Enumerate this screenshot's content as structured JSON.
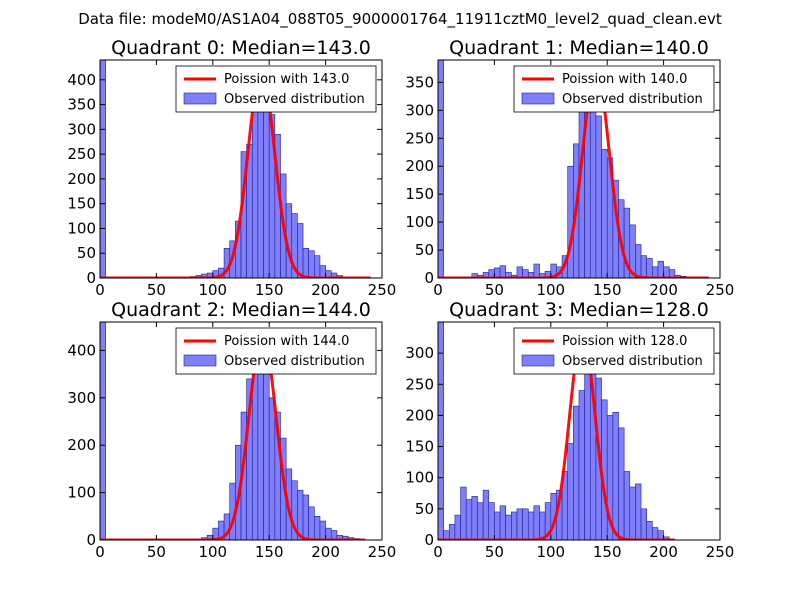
{
  "figure": {
    "title": "Data file: modeM0/AS1A04_088T05_9000001764_11911cztM0_level2_quad_clean.evt"
  },
  "colors": {
    "bar_fill": "#7f7ffb",
    "bar_edge": "#1f1f8f",
    "poisson_line": "#ff0000",
    "legend_edge": "#000000"
  },
  "chart_data": [
    {
      "type": "bar",
      "title": "Quadrant 0: Median=143.0",
      "xlim": [
        0,
        250
      ],
      "ylim": [
        0,
        440
      ],
      "xticks": [
        0,
        50,
        100,
        150,
        200,
        250
      ],
      "yticks": [
        0,
        50,
        100,
        150,
        200,
        250,
        300,
        350,
        400
      ],
      "legend_position": "top-right",
      "legend": [
        {
          "label": "Poission with 143.0",
          "kind": "line"
        },
        {
          "label": "Observed distribution",
          "kind": "bar"
        }
      ],
      "bin_width": 5,
      "histogram": {
        "bin_start": [
          0,
          80,
          85,
          90,
          95,
          100,
          105,
          110,
          115,
          120,
          125,
          130,
          135,
          140,
          145,
          150,
          155,
          160,
          165,
          170,
          175,
          180,
          185,
          190,
          195,
          200,
          205,
          210
        ],
        "counts": [
          440,
          3,
          5,
          8,
          10,
          15,
          20,
          60,
          75,
          115,
          255,
          270,
          370,
          405,
          385,
          330,
          290,
          210,
          150,
          130,
          110,
          60,
          55,
          45,
          25,
          15,
          10,
          5
        ]
      },
      "poisson": {
        "mean": 143.0,
        "peak": 415,
        "x_range": [
          0,
          240
        ]
      }
    },
    {
      "type": "bar",
      "title": "Quadrant 1: Median=140.0",
      "xlim": [
        0,
        250
      ],
      "ylim": [
        0,
        390
      ],
      "xticks": [
        0,
        50,
        100,
        150,
        200,
        250
      ],
      "yticks": [
        0,
        50,
        100,
        150,
        200,
        250,
        300,
        350
      ],
      "legend_position": "top-right",
      "legend": [
        {
          "label": "Poission with 140.0",
          "kind": "line"
        },
        {
          "label": "Observed distribution",
          "kind": "bar"
        }
      ],
      "bin_width": 5,
      "histogram": {
        "bin_start": [
          0,
          30,
          35,
          40,
          45,
          50,
          55,
          60,
          65,
          70,
          75,
          80,
          85,
          90,
          95,
          100,
          105,
          110,
          115,
          120,
          125,
          130,
          135,
          140,
          145,
          150,
          155,
          160,
          165,
          170,
          175,
          180,
          185,
          190,
          195,
          200,
          205,
          210,
          215
        ],
        "counts": [
          390,
          8,
          5,
          10,
          15,
          18,
          22,
          10,
          5,
          20,
          15,
          10,
          25,
          8,
          12,
          25,
          20,
          40,
          200,
          240,
          305,
          360,
          335,
          290,
          230,
          215,
          175,
          140,
          125,
          95,
          60,
          40,
          35,
          20,
          30,
          20,
          15,
          5,
          3
        ]
      },
      "poisson": {
        "mean": 140.0,
        "peak": 372,
        "x_range": [
          0,
          240
        ]
      }
    },
    {
      "type": "bar",
      "title": "Quadrant 2: Median=144.0",
      "xlim": [
        0,
        250
      ],
      "ylim": [
        0,
        460
      ],
      "xticks": [
        0,
        50,
        100,
        150,
        200,
        250
      ],
      "yticks": [
        0,
        100,
        200,
        300,
        400
      ],
      "legend_position": "top-right",
      "legend": [
        {
          "label": "Poission with 144.0",
          "kind": "line"
        },
        {
          "label": "Observed distribution",
          "kind": "bar"
        }
      ],
      "bin_width": 5,
      "histogram": {
        "bin_start": [
          0,
          90,
          95,
          100,
          105,
          110,
          115,
          120,
          125,
          130,
          135,
          140,
          145,
          150,
          155,
          160,
          165,
          170,
          175,
          180,
          185,
          190,
          195,
          200,
          205,
          210,
          215,
          220,
          225
        ],
        "counts": [
          460,
          5,
          10,
          25,
          40,
          55,
          120,
          200,
          270,
          340,
          390,
          430,
          350,
          300,
          270,
          215,
          150,
          125,
          105,
          95,
          70,
          50,
          40,
          25,
          20,
          10,
          8,
          5,
          3
        ]
      },
      "poisson": {
        "mean": 144.0,
        "peak": 432,
        "x_range": [
          0,
          235
        ]
      }
    },
    {
      "type": "bar",
      "title": "Quadrant 3: Median=128.0",
      "xlim": [
        0,
        250
      ],
      "ylim": [
        0,
        350
      ],
      "xticks": [
        0,
        50,
        100,
        150,
        200,
        250
      ],
      "yticks": [
        0,
        50,
        100,
        150,
        200,
        250,
        300
      ],
      "legend_position": "top-right",
      "legend": [
        {
          "label": "Poission with 128.0",
          "kind": "line"
        },
        {
          "label": "Observed distribution",
          "kind": "bar"
        }
      ],
      "bin_width": 5,
      "histogram": {
        "bin_start": [
          0,
          5,
          10,
          15,
          20,
          25,
          30,
          35,
          40,
          45,
          50,
          55,
          60,
          65,
          70,
          75,
          80,
          85,
          90,
          95,
          100,
          105,
          110,
          115,
          120,
          125,
          130,
          135,
          140,
          145,
          150,
          155,
          160,
          165,
          170,
          175,
          180,
          185,
          190,
          195,
          200
        ],
        "counts": [
          350,
          15,
          25,
          40,
          85,
          65,
          70,
          60,
          80,
          60,
          45,
          55,
          40,
          45,
          50,
          50,
          45,
          55,
          45,
          60,
          75,
          80,
          110,
          155,
          215,
          240,
          300,
          320,
          260,
          225,
          200,
          205,
          180,
          110,
          85,
          90,
          50,
          30,
          20,
          15,
          5
        ]
      },
      "poisson": {
        "mean": 128.0,
        "peak": 330,
        "x_range": [
          0,
          210
        ]
      }
    }
  ]
}
